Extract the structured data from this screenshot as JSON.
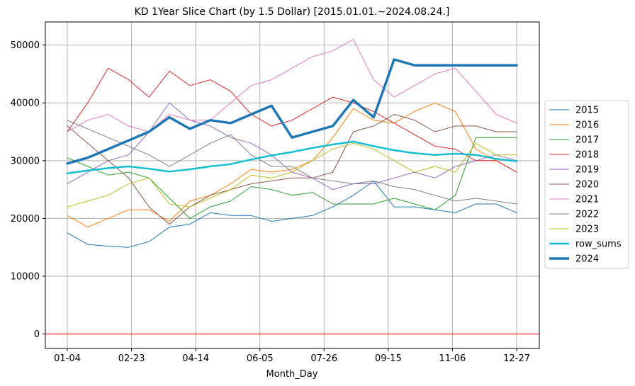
{
  "chart_data": {
    "type": "line",
    "title": "KD 1Year Slice Chart (by 1.5 Dollar) [2015.01.01.~2024.08.24.]",
    "xlabel": "Month_Day",
    "ylabel": "",
    "x_ticks": [
      "01-04",
      "02-23",
      "04-14",
      "06-05",
      "07-26",
      "09-15",
      "11-06",
      "12-27"
    ],
    "y_ticks": [
      0,
      10000,
      20000,
      30000,
      40000,
      50000
    ],
    "ylim": [
      -2500,
      54000
    ],
    "grid": true,
    "legend_position": "center-right",
    "reference_line": {
      "y": 0,
      "color": "#ff0000"
    },
    "series": [
      {
        "name": "2015",
        "color": "#1f77b4",
        "width": 1,
        "values": [
          17500,
          15500,
          15200,
          15000,
          16000,
          18500,
          19000,
          21000,
          20500,
          20500,
          19500,
          20000,
          20500,
          22000,
          24000,
          26500,
          22000,
          22000,
          21500,
          21000,
          22500,
          22500,
          21000
        ]
      },
      {
        "name": "2016",
        "color": "#ff7f0e",
        "width": 1,
        "values": [
          20500,
          18500,
          20000,
          21500,
          21500,
          19500,
          23000,
          24000,
          26000,
          28500,
          28000,
          28500,
          30000,
          34000,
          39000,
          37000,
          36500,
          38500,
          40000,
          38500,
          32000,
          30000,
          28000
        ]
      },
      {
        "name": "2017",
        "color": "#2ca02c",
        "width": 1,
        "values": [
          30500,
          29000,
          27500,
          28000,
          27000,
          23500,
          20000,
          22000,
          23000,
          25500,
          25000,
          24000,
          24500,
          22500,
          22500,
          22500,
          23500,
          22500,
          21500,
          24000,
          34000,
          34000,
          34000
        ]
      },
      {
        "name": "2018",
        "color": "#d62728",
        "width": 1,
        "values": [
          35000,
          40000,
          46000,
          44000,
          41000,
          45500,
          43000,
          44000,
          42000,
          38000,
          36000,
          37000,
          39000,
          41000,
          40000,
          38500,
          36500,
          34500,
          32500,
          32000,
          30000,
          30000,
          28000
        ]
      },
      {
        "name": "2019",
        "color": "#9467bd",
        "width": 1,
        "values": [
          26000,
          28000,
          30000,
          31000,
          35000,
          40000,
          37000,
          36000,
          34000,
          33000,
          31000,
          28000,
          27000,
          25000,
          26000,
          26000,
          27000,
          28000,
          27000,
          29000,
          30000,
          31000,
          30000
        ]
      },
      {
        "name": "2020",
        "color": "#8c564b",
        "width": 1,
        "values": [
          36000,
          33000,
          30000,
          27000,
          22000,
          19000,
          22000,
          24000,
          25000,
          26000,
          26500,
          27000,
          27000,
          28000,
          35000,
          36000,
          38000,
          37000,
          35000,
          36000,
          36000,
          35000,
          35000
        ]
      },
      {
        "name": "2021",
        "color": "#e377c2",
        "width": 1,
        "values": [
          35000,
          37000,
          38000,
          36000,
          35000,
          38000,
          37000,
          37000,
          40000,
          43000,
          44000,
          46000,
          48000,
          49000,
          51000,
          44000,
          41000,
          43000,
          45000,
          46000,
          42000,
          38000,
          36500
        ]
      },
      {
        "name": "2022",
        "color": "#7f7f7f",
        "width": 1,
        "values": [
          37000,
          35500,
          34000,
          32500,
          31000,
          29000,
          31000,
          33000,
          34500,
          31000,
          29000,
          29000,
          27000,
          26500,
          26000,
          26500,
          25500,
          25000,
          24000,
          23000,
          23500,
          23000,
          22500
        ]
      },
      {
        "name": "2023",
        "color": "#bcbd22",
        "width": 1,
        "values": [
          22000,
          23000,
          24000,
          26000,
          27000,
          22500,
          22000,
          23500,
          25000,
          27500,
          27000,
          28000,
          30000,
          32000,
          33000,
          32000,
          30000,
          28000,
          29000,
          28000,
          33000,
          31000,
          31000
        ]
      },
      {
        "name": "row_sums",
        "color": "#17becf",
        "width": 2.5,
        "values": [
          27800,
          28300,
          28700,
          29000,
          28600,
          28100,
          28500,
          29000,
          29400,
          30200,
          30900,
          31500,
          32200,
          32800,
          33300,
          32500,
          31800,
          31300,
          31000,
          31200,
          31000,
          30300,
          29900
        ]
      },
      {
        "name": "2024",
        "color": "#1f77b4",
        "width": 3.5,
        "values": [
          29500,
          30500,
          32000,
          33500,
          35000,
          37500,
          35500,
          37000,
          36500,
          38000,
          39500,
          34000,
          35000,
          36000,
          40500,
          37500,
          47500,
          46500,
          46500,
          46500,
          46500,
          46500,
          46500
        ]
      }
    ]
  }
}
